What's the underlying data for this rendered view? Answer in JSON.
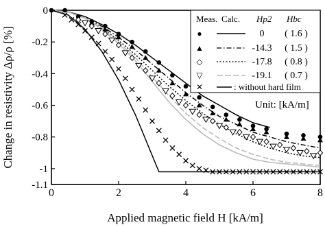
{
  "chart_data": {
    "type": "scatter",
    "xlabel": "Applied magnetic field H [kA/m]",
    "ylabel": "Change in resistivity Δρ/ρ [%]",
    "xlim": [
      0,
      8
    ],
    "ylim": [
      -1.1,
      0
    ],
    "x_ticks": [
      0,
      2,
      4,
      6,
      8
    ],
    "y_ticks": [
      0,
      -0.2,
      -0.4,
      -0.6,
      -0.8,
      -1,
      -1.1
    ],
    "grid": false,
    "legend_position": "top-right",
    "legend": {
      "headers": [
        "Meas.",
        "Calc.",
        "Hp2",
        "Hbc"
      ],
      "rows": [
        {
          "marker": "●",
          "hp2": "0",
          "hbc": "( 1.6 )",
          "dash": "solid"
        },
        {
          "marker": "▲",
          "hp2": "-14.3",
          "hbc": "( 1.5 )",
          "dash": "dashdot"
        },
        {
          "marker": "◇",
          "hp2": "-17.8",
          "hbc": "( 0.8 )",
          "dash": "dotted"
        },
        {
          "marker": "▽",
          "hp2": "-19.1",
          "hbc": "( 0.7 )",
          "dash": "longdash"
        },
        {
          "marker": "✕",
          "hp2": "",
          "hbc": "",
          "label": ": without hard film",
          "dash": "solid"
        }
      ],
      "unit": "Unit: [kA/m]"
    },
    "series": [
      {
        "marker": "circle-filled",
        "x": [
          0,
          0.4,
          0.8,
          1.2,
          1.6,
          2.0,
          2.4,
          2.8,
          3.2,
          3.6,
          4.0,
          4.4,
          4.8,
          5.2,
          5.6,
          6.0,
          6.4,
          7.0,
          7.5,
          8.0
        ],
        "y": [
          0,
          0,
          -0.04,
          -0.07,
          -0.1,
          -0.15,
          -0.2,
          -0.26,
          -0.33,
          -0.41,
          -0.48,
          -0.55,
          -0.61,
          -0.66,
          -0.69,
          -0.73,
          -0.75,
          -0.78,
          -0.79,
          -0.8
        ]
      },
      {
        "marker": "triangle-up-filled",
        "x": [
          0.8,
          1.2,
          1.6,
          2.0,
          2.4,
          2.8,
          3.2,
          3.6,
          4.0,
          4.4,
          4.8,
          5.2,
          5.6,
          6.0,
          6.4,
          7.0,
          7.5,
          8.0
        ],
        "y": [
          -0.05,
          -0.08,
          -0.12,
          -0.17,
          -0.23,
          -0.3,
          -0.38,
          -0.46,
          -0.53,
          -0.6,
          -0.65,
          -0.69,
          -0.72,
          -0.75,
          -0.77,
          -0.8,
          -0.81,
          -0.82
        ]
      },
      {
        "marker": "diamond-open",
        "x": [
          0.8,
          1.2,
          1.6,
          2.0,
          2.4,
          2.8,
          3.2,
          3.6,
          4.0,
          4.4,
          4.8,
          5.2,
          5.6,
          6.0,
          6.4,
          6.8,
          7.2,
          7.6,
          8.0
        ],
        "y": [
          -0.06,
          -0.1,
          -0.15,
          -0.22,
          -0.3,
          -0.38,
          -0.46,
          -0.54,
          -0.6,
          -0.66,
          -0.7,
          -0.74,
          -0.77,
          -0.8,
          -0.83,
          -0.85,
          -0.87,
          -0.89,
          -0.9
        ]
      },
      {
        "marker": "triangle-down-open",
        "x": [
          1.0,
          1.4,
          1.8,
          2.2,
          2.6,
          3.0,
          3.4,
          3.8,
          4.2,
          4.6,
          5.0,
          5.4,
          5.8,
          6.2,
          6.6,
          7.0,
          7.4,
          7.8
        ],
        "y": [
          -0.08,
          -0.13,
          -0.19,
          -0.27,
          -0.35,
          -0.43,
          -0.51,
          -0.58,
          -0.64,
          -0.69,
          -0.73,
          -0.77,
          -0.8,
          -0.83,
          -0.86,
          -0.88,
          -0.9,
          -0.92
        ]
      },
      {
        "marker": "cross",
        "x": [
          0.4,
          0.6,
          0.8,
          1.0,
          1.2,
          1.4,
          1.6,
          1.8,
          2.0,
          2.2,
          2.4,
          2.6,
          2.8,
          3.0,
          3.2,
          3.4,
          3.6,
          3.8,
          4.0,
          4.2,
          4.4,
          4.6,
          4.8,
          5.0,
          5.2,
          5.4,
          5.6,
          5.8,
          6.0,
          6.2,
          6.4,
          6.6,
          6.8,
          7.0,
          7.2,
          7.4,
          7.6,
          7.8,
          8.0
        ],
        "y": [
          -0.03,
          -0.06,
          -0.09,
          -0.13,
          -0.17,
          -0.21,
          -0.26,
          -0.31,
          -0.37,
          -0.43,
          -0.5,
          -0.56,
          -0.63,
          -0.7,
          -0.76,
          -0.82,
          -0.87,
          -0.91,
          -0.95,
          -0.98,
          -1.0,
          -1.01,
          -1.02,
          -1.02,
          -1.02,
          -1.02,
          -1.02,
          -1.02,
          -1.02,
          -1.02,
          -1.02,
          -1.02,
          -1.02,
          -1.02,
          -1.02,
          -1.02,
          -1.02,
          -1.02,
          -1.02
        ]
      }
    ],
    "calc_lines": [
      {
        "style": "solid",
        "color": "#000000",
        "x": [
          0,
          0.5,
          1,
          1.5,
          2,
          2.5,
          3,
          3.5,
          4,
          4.5,
          5,
          5.5,
          6,
          6.5
        ],
        "y": [
          0,
          -0.01,
          -0.04,
          -0.09,
          -0.15,
          -0.22,
          -0.3,
          -0.38,
          -0.46,
          -0.54,
          -0.6,
          -0.66,
          -0.71,
          -0.74
        ]
      },
      {
        "style": "dashdot",
        "color": "#000000",
        "x": [
          0,
          0.5,
          1,
          1.5,
          2,
          2.5,
          3,
          3.5,
          4,
          4.5,
          5,
          5.5,
          6,
          6.5,
          7,
          7.5,
          8
        ],
        "y": [
          0,
          -0.01,
          -0.05,
          -0.1,
          -0.17,
          -0.25,
          -0.34,
          -0.43,
          -0.52,
          -0.6,
          -0.67,
          -0.72,
          -0.77,
          -0.8,
          -0.83,
          -0.85,
          -0.87
        ]
      },
      {
        "style": "dotted",
        "color": "#000000",
        "x": [
          0,
          0.5,
          1,
          1.5,
          2,
          2.5,
          3,
          3.5,
          4,
          4.5,
          5,
          5.5,
          6,
          6.5,
          7,
          7.5,
          8
        ],
        "y": [
          0,
          -0.01,
          -0.05,
          -0.11,
          -0.19,
          -0.28,
          -0.38,
          -0.48,
          -0.57,
          -0.65,
          -0.72,
          -0.78,
          -0.83,
          -0.87,
          -0.9,
          -0.92,
          -0.93
        ]
      },
      {
        "style": "solid",
        "color": "#b8b8b8",
        "x": [
          0,
          0.5,
          1,
          1.5,
          2,
          2.5,
          3,
          3.5,
          4,
          4.5,
          5,
          5.5,
          6,
          6.5,
          7,
          7.5,
          8
        ],
        "y": [
          0,
          -0.01,
          -0.05,
          -0.12,
          -0.21,
          -0.32,
          -0.45,
          -0.58,
          -0.69,
          -0.78,
          -0.85,
          -0.9,
          -0.94,
          -0.96,
          -0.97,
          -0.98,
          -0.99
        ]
      },
      {
        "style": "dashed",
        "color": "#b8b8b8",
        "x": [
          0,
          0.5,
          1,
          1.5,
          2,
          2.5,
          3,
          3.5,
          4,
          4.5,
          5,
          5.5,
          6,
          6.5,
          7,
          7.5,
          8
        ],
        "y": [
          0,
          -0.01,
          -0.05,
          -0.11,
          -0.2,
          -0.3,
          -0.42,
          -0.54,
          -0.65,
          -0.74,
          -0.81,
          -0.87,
          -0.91,
          -0.94,
          -0.96,
          -0.97,
          -0.98
        ]
      },
      {
        "style": "solid",
        "color": "#000000",
        "x": [
          0,
          0.5,
          1,
          1.5,
          2,
          2.5,
          3.2,
          8
        ],
        "y": [
          0,
          -0.03,
          -0.12,
          -0.26,
          -0.44,
          -0.66,
          -1.02,
          -1.02
        ]
      }
    ]
  }
}
